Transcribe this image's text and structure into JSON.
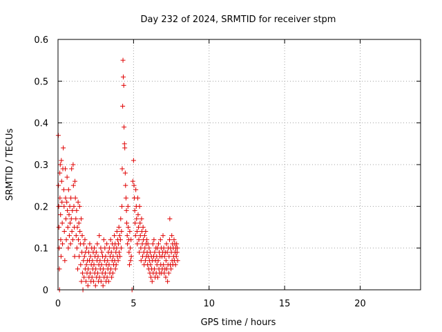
{
  "chart_data": {
    "type": "scatter",
    "title": "Day 232 of 2024, SRMTID for receiver stpm",
    "xlabel": "GPS time / hours",
    "ylabel": "SRMTID / TECUs",
    "xlim": [
      0,
      24
    ],
    "ylim": [
      0,
      0.6
    ],
    "xticks": [
      "0",
      "5",
      "10",
      "15",
      "20"
    ],
    "xtick_values": [
      0,
      5,
      10,
      15,
      20
    ],
    "yticks": [
      "0",
      "0.1",
      "0.2",
      "0.3",
      "0.4",
      "0.5",
      "0.6"
    ],
    "ytick_values": [
      0,
      0.1,
      0.2,
      0.3,
      0.4,
      0.5,
      0.6
    ],
    "grid": true,
    "marker": "+",
    "color": "#e00000",
    "series": [
      {
        "points": [
          [
            0.02,
            0.37
          ],
          [
            0.03,
            0.25
          ],
          [
            0.05,
            0.2
          ],
          [
            0.06,
            0.15
          ],
          [
            0.08,
            0.1
          ],
          [
            0.09,
            0.05
          ],
          [
            0.1,
            0.0
          ],
          [
            0.12,
            0.28
          ],
          [
            0.13,
            0.22
          ],
          [
            0.15,
            0.3
          ],
          [
            0.17,
            0.18
          ],
          [
            0.18,
            0.12
          ],
          [
            0.2,
            0.08
          ],
          [
            0.22,
            0.31
          ],
          [
            0.24,
            0.26
          ],
          [
            0.26,
            0.21
          ],
          [
            0.28,
            0.16
          ],
          [
            0.3,
            0.11
          ],
          [
            0.32,
            0.29
          ],
          [
            0.35,
            0.34
          ],
          [
            0.38,
            0.24
          ],
          [
            0.4,
            0.2
          ],
          [
            0.42,
            0.14
          ],
          [
            0.45,
            0.07
          ],
          [
            0.48,
            0.29
          ],
          [
            0.5,
            0.22
          ],
          [
            0.52,
            0.17
          ],
          [
            0.55,
            0.12
          ],
          [
            0.58,
            0.21
          ],
          [
            0.6,
            0.27
          ],
          [
            0.62,
            0.19
          ],
          [
            0.65,
            0.15
          ],
          [
            0.68,
            0.1
          ],
          [
            0.7,
            0.24
          ],
          [
            0.73,
            0.18
          ],
          [
            0.75,
            0.13
          ],
          [
            0.78,
            0.2
          ],
          [
            0.8,
            0.16
          ],
          [
            0.83,
            0.11
          ],
          [
            0.85,
            0.22
          ],
          [
            0.88,
            0.17
          ],
          [
            0.9,
            0.29
          ],
          [
            0.92,
            0.14
          ],
          [
            0.95,
            0.19
          ],
          [
            0.98,
            0.12
          ],
          [
            1.0,
            0.3
          ],
          [
            1.02,
            0.25
          ],
          [
            1.05,
            0.2
          ],
          [
            1.08,
            0.15
          ],
          [
            1.1,
            0.08
          ],
          [
            1.12,
            0.26
          ],
          [
            1.15,
            0.22
          ],
          [
            1.18,
            0.17
          ],
          [
            1.2,
            0.13
          ],
          [
            1.23,
            0.19
          ],
          [
            1.25,
            0.1
          ],
          [
            1.28,
            0.15
          ],
          [
            1.3,
            0.05
          ],
          [
            1.33,
            0.21
          ],
          [
            1.35,
            0.12
          ],
          [
            1.38,
            0.16
          ],
          [
            1.4,
            0.08
          ],
          [
            1.43,
            0.2
          ],
          [
            1.45,
            0.14
          ],
          [
            1.48,
            0.11
          ],
          [
            1.5,
            0.06
          ],
          [
            1.53,
            0.17
          ],
          [
            1.55,
            0.02
          ],
          [
            1.58,
            0.09
          ],
          [
            1.6,
            0.13
          ],
          [
            1.62,
            0.04
          ],
          [
            1.65,
            0.0
          ],
          [
            1.68,
            0.07
          ],
          [
            1.7,
            0.11
          ],
          [
            1.72,
            0.03
          ],
          [
            1.75,
            0.08
          ],
          [
            1.78,
            0.12
          ],
          [
            1.8,
            0.05
          ],
          [
            1.82,
            0.09
          ],
          [
            1.85,
            0.02
          ],
          [
            1.88,
            0.06
          ],
          [
            1.9,
            0.1
          ],
          [
            1.92,
            0.04
          ],
          [
            1.95,
            0.07
          ],
          [
            1.98,
            0.01
          ],
          [
            2.0,
            0.05
          ],
          [
            2.03,
            0.09
          ],
          [
            2.05,
            0.03
          ],
          [
            2.08,
            0.07
          ],
          [
            2.1,
            0.11
          ],
          [
            2.13,
            0.04
          ],
          [
            2.15,
            0.08
          ],
          [
            2.18,
            0.02
          ],
          [
            2.2,
            0.06
          ],
          [
            2.23,
            0.1
          ],
          [
            2.25,
            0.03
          ],
          [
            2.28,
            0.07
          ],
          [
            2.3,
            0.05
          ],
          [
            2.33,
            0.09
          ],
          [
            2.35,
            0.02
          ],
          [
            2.38,
            0.06
          ],
          [
            2.4,
            0.1
          ],
          [
            2.43,
            0.04
          ],
          [
            2.45,
            0.08
          ],
          [
            2.48,
            0.01
          ],
          [
            2.5,
            0.05
          ],
          [
            2.53,
            0.09
          ],
          [
            2.55,
            0.03
          ],
          [
            2.58,
            0.07
          ],
          [
            2.6,
            0.11
          ],
          [
            2.63,
            0.04
          ],
          [
            2.65,
            0.08
          ],
          [
            2.68,
            0.02
          ],
          [
            2.7,
            0.06
          ],
          [
            2.73,
            0.13
          ],
          [
            2.75,
            0.03
          ],
          [
            2.78,
            0.07
          ],
          [
            2.8,
            0.05
          ],
          [
            2.83,
            0.1
          ],
          [
            2.85,
            0.02
          ],
          [
            2.88,
            0.06
          ],
          [
            2.9,
            0.09
          ],
          [
            2.93,
            0.04
          ],
          [
            2.95,
            0.08
          ],
          [
            2.98,
            0.01
          ],
          [
            3.0,
            0.05
          ],
          [
            3.03,
            0.12
          ],
          [
            3.05,
            0.03
          ],
          [
            3.08,
            0.07
          ],
          [
            3.1,
            0.1
          ],
          [
            3.13,
            0.04
          ],
          [
            3.15,
            0.08
          ],
          [
            3.18,
            0.02
          ],
          [
            3.2,
            0.06
          ],
          [
            3.23,
            0.11
          ],
          [
            3.25,
            0.03
          ],
          [
            3.28,
            0.07
          ],
          [
            3.3,
            0.05
          ],
          [
            3.33,
            0.09
          ],
          [
            3.35,
            0.02
          ],
          [
            3.38,
            0.06
          ],
          [
            3.4,
            0.1
          ],
          [
            3.43,
            0.04
          ],
          [
            3.45,
            0.08
          ],
          [
            3.48,
            0.12
          ],
          [
            3.5,
            0.05
          ],
          [
            3.53,
            0.09
          ],
          [
            3.55,
            0.03
          ],
          [
            3.58,
            0.07
          ],
          [
            3.6,
            0.11
          ],
          [
            3.63,
            0.04
          ],
          [
            3.65,
            0.08
          ],
          [
            3.68,
            0.06
          ],
          [
            3.7,
            0.1
          ],
          [
            3.73,
            0.13
          ],
          [
            3.75,
            0.07
          ],
          [
            3.78,
            0.11
          ],
          [
            3.8,
            0.05
          ],
          [
            3.83,
            0.09
          ],
          [
            3.85,
            0.06
          ],
          [
            3.88,
            0.1
          ],
          [
            3.9,
            0.14
          ],
          [
            3.93,
            0.08
          ],
          [
            3.95,
            0.12
          ],
          [
            3.98,
            0.07
          ],
          [
            4.0,
            0.11
          ],
          [
            4.03,
            0.15
          ],
          [
            4.05,
            0.09
          ],
          [
            4.08,
            0.13
          ],
          [
            4.1,
            0.08
          ],
          [
            4.13,
            0.12
          ],
          [
            4.15,
            0.17
          ],
          [
            4.18,
            0.1
          ],
          [
            4.2,
            0.14
          ],
          [
            4.23,
            0.2
          ],
          [
            4.25,
            0.29
          ],
          [
            4.28,
            0.44
          ],
          [
            4.3,
            0.55
          ],
          [
            4.32,
            0.51
          ],
          [
            4.35,
            0.49
          ],
          [
            4.37,
            0.39
          ],
          [
            4.4,
            0.35
          ],
          [
            4.42,
            0.34
          ],
          [
            4.45,
            0.28
          ],
          [
            4.47,
            0.25
          ],
          [
            4.5,
            0.22
          ],
          [
            4.53,
            0.19
          ],
          [
            4.55,
            0.16
          ],
          [
            4.58,
            0.13
          ],
          [
            4.6,
            0.11
          ],
          [
            4.63,
            0.2
          ],
          [
            4.65,
            0.15
          ],
          [
            4.68,
            0.12
          ],
          [
            4.7,
            0.09
          ],
          [
            4.73,
            0.06
          ],
          [
            4.75,
            0.14
          ],
          [
            4.78,
            0.1
          ],
          [
            4.8,
            0.07
          ],
          [
            4.83,
            0.12
          ],
          [
            4.85,
            0.08
          ],
          [
            4.9,
            0.0
          ],
          [
            4.95,
            0.26
          ],
          [
            5.0,
            0.31
          ],
          [
            5.03,
            0.25
          ],
          [
            5.05,
            0.22
          ],
          [
            5.08,
            0.19
          ],
          [
            5.1,
            0.16
          ],
          [
            5.13,
            0.13
          ],
          [
            5.15,
            0.24
          ],
          [
            5.18,
            0.2
          ],
          [
            5.2,
            0.17
          ],
          [
            5.23,
            0.14
          ],
          [
            5.25,
            0.11
          ],
          [
            5.28,
            0.22
          ],
          [
            5.3,
            0.18
          ],
          [
            5.33,
            0.15
          ],
          [
            5.35,
            0.12
          ],
          [
            5.38,
            0.09
          ],
          [
            5.4,
            0.2
          ],
          [
            5.43,
            0.16
          ],
          [
            5.45,
            0.13
          ],
          [
            5.48,
            0.1
          ],
          [
            5.5,
            0.07
          ],
          [
            5.53,
            0.17
          ],
          [
            5.55,
            0.14
          ],
          [
            5.58,
            0.11
          ],
          [
            5.6,
            0.08
          ],
          [
            5.63,
            0.15
          ],
          [
            5.65,
            0.12
          ],
          [
            5.68,
            0.09
          ],
          [
            5.7,
            0.06
          ],
          [
            5.73,
            0.13
          ],
          [
            5.75,
            0.1
          ],
          [
            5.78,
            0.07
          ],
          [
            5.8,
            0.14
          ],
          [
            5.83,
            0.11
          ],
          [
            5.85,
            0.08
          ],
          [
            5.88,
            0.12
          ],
          [
            5.9,
            0.09
          ],
          [
            5.93,
            0.06
          ],
          [
            5.95,
            0.11
          ],
          [
            5.98,
            0.08
          ],
          [
            6.0,
            0.05
          ],
          [
            6.03,
            0.1
          ],
          [
            6.05,
            0.07
          ],
          [
            6.08,
            0.04
          ],
          [
            6.1,
            0.09
          ],
          [
            6.13,
            0.06
          ],
          [
            6.15,
            0.03
          ],
          [
            6.18,
            0.08
          ],
          [
            6.2,
            0.05
          ],
          [
            6.23,
            0.02
          ],
          [
            6.25,
            0.07
          ],
          [
            6.28,
            0.11
          ],
          [
            6.3,
            0.04
          ],
          [
            6.33,
            0.08
          ],
          [
            6.35,
            0.12
          ],
          [
            6.38,
            0.05
          ],
          [
            6.4,
            0.09
          ],
          [
            6.43,
            0.03
          ],
          [
            6.45,
            0.07
          ],
          [
            6.48,
            0.1
          ],
          [
            6.5,
            0.04
          ],
          [
            6.53,
            0.08
          ],
          [
            6.55,
            0.06
          ],
          [
            6.58,
            0.1
          ],
          [
            6.6,
            0.03
          ],
          [
            6.63,
            0.07
          ],
          [
            6.65,
            0.11
          ],
          [
            6.68,
            0.05
          ],
          [
            6.7,
            0.09
          ],
          [
            6.73,
            0.04
          ],
          [
            6.75,
            0.08
          ],
          [
            6.78,
            0.12
          ],
          [
            6.8,
            0.06
          ],
          [
            6.83,
            0.1
          ],
          [
            6.85,
            0.04
          ],
          [
            6.88,
            0.08
          ],
          [
            6.9,
            0.05
          ],
          [
            6.93,
            0.09
          ],
          [
            6.95,
            0.13
          ],
          [
            6.98,
            0.06
          ],
          [
            7.0,
            0.1
          ],
          [
            7.03,
            0.04
          ],
          [
            7.05,
            0.08
          ],
          [
            7.08,
            0.05
          ],
          [
            7.1,
            0.09
          ],
          [
            7.13,
            0.03
          ],
          [
            7.15,
            0.07
          ],
          [
            7.18,
            0.11
          ],
          [
            7.2,
            0.05
          ],
          [
            7.23,
            0.09
          ],
          [
            7.25,
            0.02
          ],
          [
            7.28,
            0.06
          ],
          [
            7.3,
            0.1
          ],
          [
            7.33,
            0.04
          ],
          [
            7.35,
            0.08
          ],
          [
            7.38,
            0.12
          ],
          [
            7.4,
            0.17
          ],
          [
            7.43,
            0.06
          ],
          [
            7.45,
            0.1
          ],
          [
            7.48,
            0.05
          ],
          [
            7.5,
            0.09
          ],
          [
            7.53,
            0.13
          ],
          [
            7.55,
            0.07
          ],
          [
            7.58,
            0.11
          ],
          [
            7.6,
            0.06
          ],
          [
            7.63,
            0.1
          ],
          [
            7.65,
            0.08
          ],
          [
            7.68,
            0.12
          ],
          [
            7.7,
            0.07
          ],
          [
            7.73,
            0.11
          ],
          [
            7.75,
            0.09
          ],
          [
            7.78,
            0.06
          ],
          [
            7.8,
            0.1
          ],
          [
            7.83,
            0.08
          ],
          [
            7.85,
            0.11
          ],
          [
            7.88,
            0.09
          ],
          [
            7.9,
            0.1
          ],
          [
            7.92,
            0.07
          ]
        ]
      }
    ]
  }
}
